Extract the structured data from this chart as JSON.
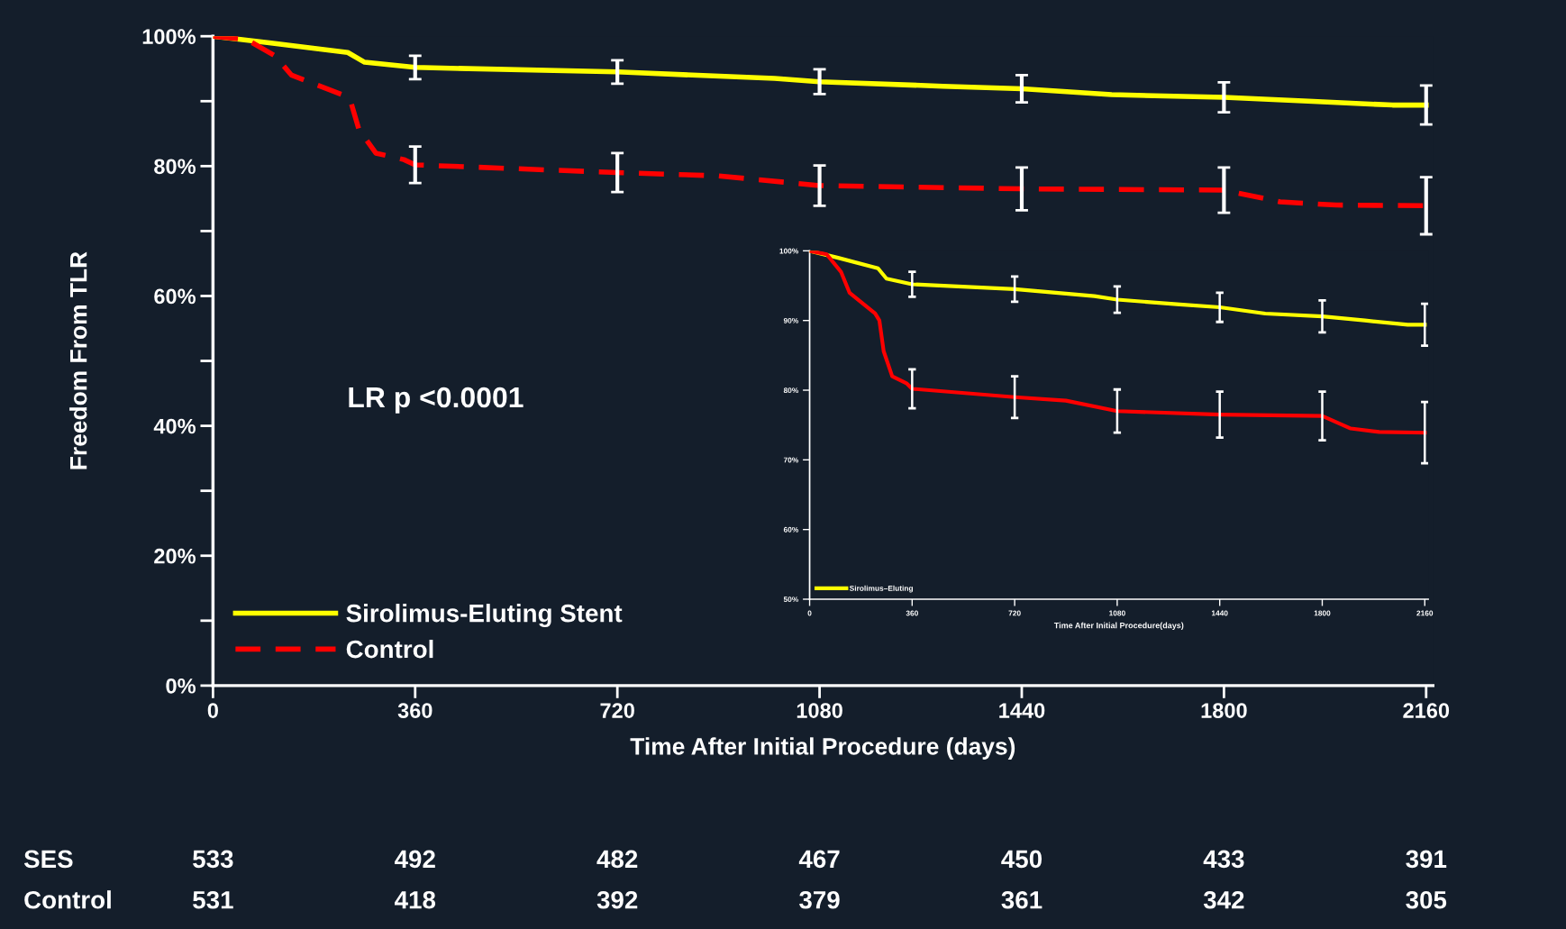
{
  "chart_data": [
    {
      "type": "line",
      "xlabel": "Time After Initial Procedure (days)",
      "ylabel": "Freedom From TLR",
      "xlim": [
        0,
        2172
      ],
      "ylim": [
        0,
        100
      ],
      "xticks": [
        0,
        360,
        720,
        1080,
        1440,
        1800,
        2160
      ],
      "yticks": [
        {
          "value": 0,
          "label": "0%"
        },
        {
          "value": 10,
          "label": null
        },
        {
          "value": 20,
          "label": "20%"
        },
        {
          "value": 30,
          "label": null
        },
        {
          "value": 40,
          "label": "40%"
        },
        {
          "value": 50,
          "label": null
        },
        {
          "value": 60,
          "label": "60%"
        },
        {
          "value": 70,
          "label": null
        },
        {
          "value": 80,
          "label": "80%"
        },
        {
          "value": 90,
          "label": null
        },
        {
          "value": 100,
          "label": "100%"
        }
      ],
      "legend": "bottom left",
      "grid": false,
      "series": [
        {
          "name": "Sirolimus-Eluting Stent",
          "color": "#ffff00",
          "line_style": "solid",
          "x": [
            0,
            100,
            240,
            270,
            360,
            720,
            1000,
            1080,
            1300,
            1440,
            1600,
            1800,
            1950,
            2100,
            2160
          ],
          "values": [
            100,
            99,
            97.5,
            96,
            95.2,
            94.5,
            93.5,
            93,
            92.3,
            91.9,
            91,
            90.6,
            90,
            89.4,
            89.4
          ],
          "errors": [
            null,
            null,
            null,
            null,
            1.8,
            1.8,
            null,
            1.9,
            null,
            2.1,
            null,
            2.3,
            null,
            null,
            3
          ]
        },
        {
          "name": "Control",
          "color": "#ff0000",
          "line_style": "dashed",
          "x": [
            0,
            60,
            110,
            140,
            230,
            245,
            260,
            290,
            340,
            360,
            720,
            900,
            1080,
            1440,
            1800,
            1900,
            2000,
            2160
          ],
          "values": [
            100,
            99.5,
            97,
            94,
            91,
            90,
            85.6,
            82,
            81,
            80.2,
            79,
            78.5,
            77,
            76.5,
            76.3,
            74.5,
            74,
            73.9
          ],
          "errors": [
            null,
            null,
            null,
            null,
            null,
            null,
            null,
            null,
            null,
            2.8,
            3,
            null,
            3.1,
            3.3,
            3.5,
            null,
            null,
            4.4
          ]
        }
      ],
      "annotations": [
        "LR p <0.0001",
        "SES",
        "533",
        "492",
        "482",
        "467",
        "450",
        "433",
        "391",
        "Control",
        "531",
        "418",
        "392",
        "379",
        "361",
        "342",
        "305"
      ]
    },
    {
      "type": "line",
      "xlabel": "Time After Initial Procedure(days)",
      "xlim": [
        0,
        2172
      ],
      "ylim": [
        50,
        100
      ],
      "xticks": [
        0,
        360,
        720,
        1080,
        1440,
        1800,
        2160
      ],
      "yticks": [
        {
          "value": 50,
          "label": "50%"
        },
        {
          "value": 60,
          "label": "60%"
        },
        {
          "value": 70,
          "label": "70%"
        },
        {
          "value": 80,
          "label": "80%"
        },
        {
          "value": 90,
          "label": "90%"
        },
        {
          "value": 100,
          "label": "100%"
        }
      ],
      "legend": "bottom left",
      "grid": false,
      "series": [
        {
          "name": "Sirolimus–Eluting",
          "color": "#ffff00",
          "line_style": "solid",
          "x": [
            0,
            100,
            240,
            270,
            360,
            720,
            1000,
            1080,
            1300,
            1440,
            1600,
            1800,
            1950,
            2100,
            2160
          ],
          "values": [
            100,
            99,
            97.5,
            96,
            95.2,
            94.5,
            93.5,
            93,
            92.3,
            91.9,
            91,
            90.6,
            90,
            89.4,
            89.4
          ],
          "errors": [
            null,
            null,
            null,
            null,
            1.8,
            1.8,
            null,
            1.9,
            null,
            2.1,
            null,
            2.3,
            null,
            null,
            3
          ]
        },
        {
          "color": "#ff0000",
          "line_style": "solid",
          "x": [
            0,
            60,
            110,
            140,
            230,
            245,
            260,
            290,
            340,
            360,
            720,
            900,
            1080,
            1440,
            1800,
            1900,
            2000,
            2160
          ],
          "values": [
            100,
            99.5,
            97,
            94,
            91,
            90,
            85.6,
            82,
            81,
            80.2,
            79,
            78.5,
            77,
            76.5,
            76.3,
            74.5,
            74,
            73.9
          ],
          "errors": [
            null,
            null,
            null,
            null,
            null,
            null,
            null,
            null,
            null,
            2.8,
            3,
            null,
            3.1,
            3.3,
            3.5,
            null,
            null,
            4.4
          ]
        }
      ]
    }
  ]
}
